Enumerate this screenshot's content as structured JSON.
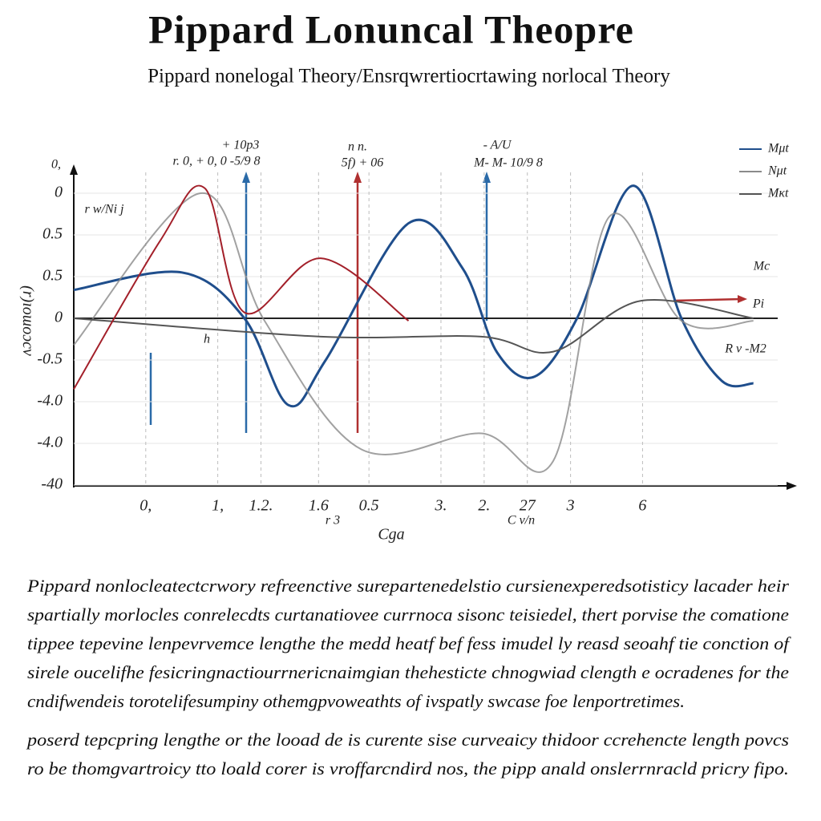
{
  "header": {
    "title": "Pippard Lonuncal Theopre",
    "subtitle": "Pippard nonelogal Theory/Ensrqwrertiocrtawing norlocal Theory"
  },
  "chart_data": {
    "type": "line",
    "x_label": "Cga",
    "y_label": "ʌɔcomoı(ɹ)",
    "xlim": [
      -1,
      9
    ],
    "ylim": [
      -2,
      1.75
    ],
    "xticks": [
      {
        "value": 0,
        "label": "0,"
      },
      {
        "value": 1,
        "label": "1,"
      },
      {
        "value": 1.6,
        "label": "1.2."
      },
      {
        "value": 2.4,
        "label": "1.6"
      },
      {
        "value": 3.1,
        "label": "0.5"
      },
      {
        "value": 4.1,
        "label": "3."
      },
      {
        "value": 4.7,
        "label": "2."
      },
      {
        "value": 5.3,
        "label": "27"
      },
      {
        "value": 5.9,
        "label": "3"
      },
      {
        "value": 6.9,
        "label": "6"
      }
    ],
    "yticks": [
      {
        "value": 1.5,
        "label": "0"
      },
      {
        "value": 1.0,
        "label": "0.5"
      },
      0.5,
      0,
      {
        "value": -0.5,
        "label": "-0.5"
      },
      {
        "value": -1.0,
        "label": "-4.0"
      },
      {
        "value": -1.5,
        "label": "-4.0"
      },
      {
        "value": -2.0,
        "label": "-40"
      }
    ],
    "grid": true,
    "legend": "upper right",
    "series": [
      {
        "name": "Mμt",
        "color": "#1f4e8c",
        "x": [
          -1,
          0.5,
          1.37,
          1.98,
          2.5,
          3.65,
          4.4,
          4.88,
          5.4,
          5.99,
          6.77,
          7.44,
          8.0,
          8.44
        ],
        "values": [
          0.34,
          0.55,
          0,
          -1.04,
          -0.5,
          1.14,
          0.6,
          -0.41,
          -0.7,
          0,
          1.59,
          0,
          -0.75,
          -0.78
        ]
      },
      {
        "name": "Nμt",
        "color": "#8a8a8a",
        "x": [
          -1,
          0.76,
          1.65,
          2.99,
          4.66,
          5.66,
          6.44,
          7.44,
          8.44
        ],
        "values": [
          -0.32,
          1.5,
          -0.03,
          -1.57,
          -1.38,
          -1.71,
          1.22,
          -0.03,
          -0.03
        ]
      },
      {
        "name": "Mκt",
        "color": "#555555",
        "x": [
          -1,
          2.43,
          4.66,
          5.66,
          6.88,
          8.44
        ],
        "values": [
          0,
          -0.22,
          -0.22,
          -0.4,
          0.21,
          0
        ]
      },
      {
        "color": "#a3202a",
        "x": [
          -1,
          0.2,
          0.82,
          1.37,
          2.43,
          3.65
        ],
        "values": [
          -0.85,
          0.93,
          1.56,
          0.07,
          0.72,
          -0.03
        ]
      }
    ],
    "annotations": [
      "0,",
      "+ 10p3",
      "r. 0, + 0, 0 -5/9 8",
      "n n.",
      "5f) + 06",
      "- A/U",
      "M- M- 10/9 8",
      "r w/Ni j",
      "h",
      "Mc",
      "Pi",
      "R v -M2",
      "r 3",
      "C v/n"
    ]
  },
  "body": {
    "paragraphs": [
      [
        "Pippard nonlocleatectcrwory refreenctive surepartenedelstio cursienexperedsotisticy lacader heir",
        "spartially morlocles conrelecdts curtanatiovee currnoca sisonc teisiedel, thert porvise the comatione",
        "tippee tepevine lenpevrvemce lengthe the medd heatf bef fess imudel ly reasd seoahf tie conction of",
        "sirele oucelifhe fesicringnactiourrnericnaimgian thehesticte chnogwiad clength e ocradenes for the",
        "cndifwendeis torotelifesumpiny othemgpvoweathts of ivspatly swcase foe lenportretimes."
      ],
      [
        "poserd tepcpring lengthe or the looad de is curente sise curveaicy thidoor ccrehencte length povcs",
        "ro be thomgvartroicy tto loald corer is vroffarcndird nos, the pipp anald onslerrnracld pricry fipo."
      ]
    ]
  }
}
